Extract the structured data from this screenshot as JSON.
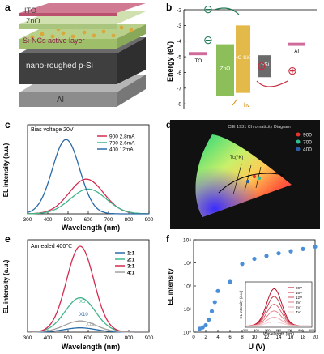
{
  "panels": {
    "a": {
      "label": "a",
      "layers": [
        "ITO",
        "ZnO",
        "Si-NCs active layer",
        "nano-roughed p-Si",
        "Al"
      ],
      "colors": {
        "ito": "#c9506e",
        "zno": "#a8c47a",
        "ncs": "#d6b04a",
        "psi": "#555555",
        "al": "#9a9a9a"
      }
    },
    "b": {
      "label": "b",
      "ylabel": "Energy (eV)",
      "yticks": [
        "-2",
        "-3",
        "-4",
        "-5",
        "-6",
        "-7",
        "-8"
      ],
      "ylim": [
        -8.3,
        -2
      ],
      "blocks": [
        {
          "name": "ITO",
          "top": -4.7,
          "bottom": -4.9,
          "color": "#d06a9a"
        },
        {
          "name": "ZnO",
          "top": -4.2,
          "bottom": -7.5,
          "color": "#8cbf5a"
        },
        {
          "name": "NC SiO",
          "top": -3.0,
          "bottom": -7.3,
          "color": "#e3b94a"
        },
        {
          "name": "r-Si",
          "top": -4.9,
          "bottom": -6.3,
          "color": "#6b6b6b"
        },
        {
          "name": "Al",
          "top": -4.1,
          "bottom": -4.3,
          "color": "#d06a9a"
        }
      ],
      "electron_sign": "⊖",
      "hole_sign": "⊕",
      "emission": "hv"
    },
    "c": {
      "label": "c",
      "annotation": "Bias voltage  20V",
      "xlabel": "Wavelength (nm)",
      "ylabel": "EL intensity (a.u.)",
      "xticks": [
        300,
        400,
        500,
        600,
        700,
        800,
        900
      ]
    },
    "d": {
      "label": "d",
      "title": "CIE 1931 Chromaticity Diagram",
      "tc_label": "Tc(°K)",
      "legend": [
        {
          "label": "900",
          "color": "#e3342f"
        },
        {
          "label": "700",
          "color": "#2ebf91"
        },
        {
          "label": "400",
          "color": "#2a5fa8"
        }
      ],
      "wavelength_marks": [
        "460",
        "480",
        "490",
        "500",
        "510",
        "520",
        "540",
        "560",
        "580",
        "600",
        "620",
        "700"
      ]
    },
    "e": {
      "label": "e",
      "annotation": "Annealed 400℃",
      "xlabel": "Wavelength (nm)",
      "ylabel": "EL intensity (a.u.)",
      "xticks": [
        300,
        400,
        500,
        600,
        700,
        800,
        900
      ],
      "multipliers": [
        "X5",
        "X10",
        "X15"
      ]
    },
    "f": {
      "label": "f",
      "xlabel": "U (V)",
      "ylabel": "EL intensity",
      "xticks": [
        0,
        2,
        4,
        6,
        8,
        10,
        12,
        14,
        16,
        18,
        20
      ],
      "yticks": [
        "10⁰",
        "10¹",
        "10²",
        "10³",
        "10⁴"
      ],
      "inset": {
        "xlabel": "Wavelength (nm)",
        "ylabel": "EL intensity (a.u.)",
        "xticks": [
          300,
          400,
          500,
          600,
          700,
          800,
          900
        ],
        "legend": [
          "20V",
          "16V",
          "12V",
          "8V",
          "6V",
          "4V"
        ]
      }
    }
  },
  "chart_data": [
    {
      "type": "line",
      "panel": "c",
      "xlim": [
        300,
        900
      ],
      "series": [
        {
          "name": "900 2.8mA",
          "color": "#d42a4e",
          "peak_x": 590,
          "peak_y": 0.42,
          "width": 120
        },
        {
          "name": "700  2.6mA",
          "color": "#3fb58a",
          "peak_x": 600,
          "peak_y": 0.3,
          "width": 125
        },
        {
          "name": "400  12mA",
          "color": "#2a6aa8",
          "peak_x": 490,
          "peak_y": 0.9,
          "width": 95
        }
      ]
    },
    {
      "type": "line",
      "panel": "e",
      "xlim": [
        300,
        900
      ],
      "series": [
        {
          "name": "1:1",
          "color": "#2a6aa8",
          "peak_x": 560,
          "peak_y": 0.05,
          "width": 110
        },
        {
          "name": "2:1",
          "color": "#3fb58a",
          "peak_x": 560,
          "peak_y": 0.4,
          "width": 105
        },
        {
          "name": "3:1",
          "color": "#d42a4e",
          "peak_x": 560,
          "peak_y": 1.0,
          "width": 95
        },
        {
          "name": "4:1",
          "color": "#a0a0a0",
          "peak_x": 560,
          "peak_y": 0.13,
          "width": 110
        }
      ]
    },
    {
      "type": "scatter",
      "panel": "f",
      "xlim": [
        0,
        20
      ],
      "ylog": true,
      "ylim_exp": [
        0,
        4
      ],
      "x": [
        1.0,
        1.5,
        2.0,
        2.5,
        3.0,
        3.5,
        4.0,
        6.0,
        8.0,
        10.0,
        12.0,
        14.0,
        16.0,
        18.0,
        20.0
      ],
      "y": [
        1.4,
        1.6,
        2.0,
        3.5,
        8,
        20,
        60,
        150,
        900,
        1500,
        2000,
        2600,
        3200,
        4000,
        5000
      ],
      "color": "#4a8fd8"
    }
  ]
}
